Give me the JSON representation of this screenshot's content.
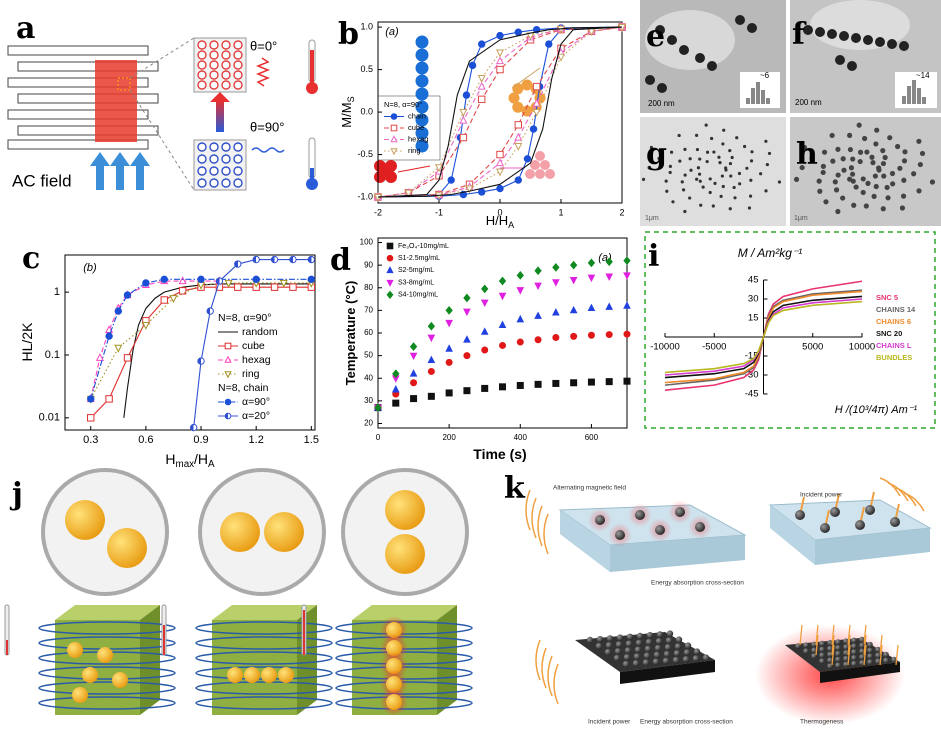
{
  "panel_labels": [
    "a",
    "b",
    "c",
    "d",
    "e",
    "f",
    "g",
    "h",
    "i",
    "j",
    "k"
  ],
  "panel_a": {
    "field_label": "AC field",
    "angle_parallel": "θ=0°",
    "angle_perpendicular": "θ=90°"
  },
  "micrographs": {
    "e_scale": "200 nm",
    "e_size": "~6",
    "f_scale": "200 nm",
    "f_size": "~14",
    "g_scale": "1μm",
    "h_scale": "1μm"
  },
  "panel_k": {
    "field": "Alternating magnetic field",
    "power_top": "Incident power",
    "cross_section_top": "Energy absorption cross-section",
    "power_bottom": "Incident power",
    "cross_section_bottom": "Energy absorption cross-section",
    "heat": "Thermogeness"
  },
  "chart_data": [
    {
      "type": "line",
      "annotation": "(a)",
      "xlabel": [
        "H/H",
        "A"
      ],
      "ylabel": [
        "M/M",
        "S"
      ],
      "xlim": [
        -2,
        2
      ],
      "ylim": [
        -1.07,
        1.06
      ],
      "xticks": [
        -2,
        -1,
        0,
        1,
        2
      ],
      "yticks": [
        {
          "value": -1,
          "label": "-1.0"
        },
        {
          "value": -0.5,
          "label": "-0.5"
        },
        {
          "value": 0,
          "label": "0.0"
        },
        {
          "value": 0.5,
          "label": "0.5"
        },
        {
          "value": 1,
          "label": "1.0"
        }
      ],
      "legend": "left",
      "series_groups": [
        {
          "title": "N=8, α=90°",
          "series": [
            {
              "name": "chain",
              "color": "#1a4fd6",
              "marker": "circle",
              "filled": true,
              "dash": "solid",
              "x": [
                2,
                1,
                0.6,
                0.3,
                0,
                -0.3,
                -0.45,
                -0.55,
                -0.65,
                -0.8,
                -1,
                -2,
                -1,
                -0.6,
                -0.3,
                0,
                0.3,
                0.45,
                0.55,
                0.65,
                0.8,
                1,
                2
              ],
              "values": [
                1,
                0.99,
                0.97,
                0.94,
                0.9,
                0.8,
                0.55,
                0.2,
                -0.3,
                -0.8,
                -0.97,
                -1,
                -0.99,
                -0.97,
                -0.94,
                -0.9,
                -0.8,
                -0.55,
                -0.2,
                0.3,
                0.8,
                0.97,
                1
              ]
            },
            {
              "name": "cube",
              "color": "#e04848",
              "marker": "square",
              "filled": false,
              "dash": "dashed",
              "x": [
                2,
                1,
                0.5,
                0,
                -0.3,
                -0.6,
                -1,
                -1.5,
                -2,
                -1,
                -0.5,
                0,
                0.3,
                0.6,
                1,
                1.5,
                2
              ],
              "values": [
                1,
                0.97,
                0.85,
                0.5,
                0.15,
                -0.3,
                -0.75,
                -0.95,
                -1,
                -0.97,
                -0.85,
                -0.5,
                -0.15,
                0.3,
                0.75,
                0.95,
                1
              ]
            },
            {
              "name": "hexag",
              "color": "#e868c8",
              "marker": "triangle",
              "filled": false,
              "dash": "dashed",
              "x": [
                2,
                1,
                0.5,
                0,
                -0.3,
                -0.6,
                -1,
                -1.5,
                -2,
                -1,
                -0.5,
                0,
                0.3,
                0.6,
                1,
                1.5,
                2
              ],
              "values": [
                1,
                0.98,
                0.88,
                0.6,
                0.3,
                -0.1,
                -0.7,
                -0.95,
                -1,
                -0.98,
                -0.88,
                -0.6,
                -0.3,
                0.1,
                0.7,
                0.95,
                1
              ]
            },
            {
              "name": "ring",
              "color": "#c8a060",
              "marker": "tri-down",
              "filled": false,
              "dash": "dotted",
              "x": [
                2,
                1,
                0.5,
                0,
                -0.3,
                -0.6,
                -1,
                -1.5,
                -2,
                -1,
                -0.5,
                0,
                0.3,
                0.6,
                1,
                1.5,
                2
              ],
              "values": [
                1,
                0.98,
                0.9,
                0.7,
                0.4,
                0,
                -0.65,
                -0.95,
                -1,
                -0.98,
                -0.9,
                -0.7,
                -0.4,
                0,
                0.65,
                0.95,
                1
              ]
            },
            {
              "color": "#111111",
              "dash": "solid",
              "x": [
                2,
                1.2,
                0.8,
                0.5,
                0,
                -0.5,
                -0.7,
                -0.85,
                -1,
                -1.2,
                -2,
                -1.2,
                -0.8,
                -0.5,
                0,
                0.5,
                0.7,
                0.85,
                1,
                1.2,
                2
              ],
              "values": [
                1,
                0.99,
                0.97,
                0.93,
                0.85,
                0.6,
                0.2,
                -0.4,
                -0.8,
                -0.97,
                -1,
                -0.99,
                -0.97,
                -0.93,
                -0.85,
                -0.6,
                -0.2,
                0.4,
                0.8,
                0.97,
                1
              ]
            }
          ]
        }
      ]
    },
    {
      "type": "line",
      "annotation": "(b)",
      "xlabel": [
        "H",
        "max",
        "/H",
        "A"
      ],
      "ylabel": [
        "HL/2K"
      ],
      "log_y": true,
      "xlim": [
        0.16,
        1.52
      ],
      "ylim": [
        0.0064,
        3.9
      ],
      "xticks": [
        0.3,
        0.6,
        0.9,
        1.2,
        1.5
      ],
      "yticks": [
        0.01,
        0.1,
        1
      ],
      "legend": "right",
      "series_groups": [
        {
          "title": "N=8, α=90°",
          "series": [
            {
              "name": "random",
              "color": "#111111",
              "dash": "solid",
              "x": [
                0.48,
                0.5,
                0.53,
                0.56,
                0.6,
                0.65,
                0.7,
                0.8,
                0.9,
                1.0,
                1.2,
                1.5
              ],
              "values": [
                0.01,
                0.03,
                0.12,
                0.3,
                0.55,
                0.8,
                1.0,
                1.2,
                1.3,
                1.35,
                1.35,
                1.35
              ]
            },
            {
              "name": "cube",
              "color": "#e03030",
              "marker": "square",
              "filled": false,
              "dash": "solid",
              "x": [
                0.3,
                0.4,
                0.5,
                0.6,
                0.7,
                0.8,
                0.9,
                1.0,
                1.1,
                1.2,
                1.3,
                1.4,
                1.5
              ],
              "values": [
                0.01,
                0.02,
                0.09,
                0.35,
                0.75,
                1.05,
                1.2,
                1.2,
                1.2,
                1.2,
                1.2,
                1.2,
                1.2
              ]
            },
            {
              "name": "hexag",
              "color": "#ff40c0",
              "marker": "triangle",
              "filled": false,
              "dash": "dashed",
              "x": [
                0.3,
                0.35,
                0.4,
                0.45,
                0.5,
                0.6,
                0.7,
                0.8,
                0.9,
                1.0
              ],
              "values": [
                0.02,
                0.09,
                0.25,
                0.55,
                0.9,
                1.3,
                1.5,
                1.5,
                1.5,
                1.5
              ]
            },
            {
              "name": "ring",
              "color": "#a09020",
              "marker": "tri-down",
              "filled": false,
              "dash": "dotted",
              "x": [
                0.3,
                0.45,
                0.6,
                0.75,
                0.9,
                1.05,
                1.2,
                1.35,
                1.5
              ],
              "values": [
                0.02,
                0.13,
                0.3,
                0.8,
                1.3,
                1.4,
                1.4,
                1.4,
                1.4
              ]
            }
          ]
        },
        {
          "title": "N=8, chain",
          "series": [
            {
              "name": "α=90°",
              "color": "#1a4fd6",
              "marker": "circle",
              "filled": true,
              "dash": "dashdot",
              "x": [
                0.3,
                0.4,
                0.45,
                0.5,
                0.6,
                0.7,
                0.9,
                1.2,
                1.5
              ],
              "values": [
                0.02,
                0.2,
                0.5,
                0.9,
                1.4,
                1.6,
                1.6,
                1.6,
                1.6
              ]
            },
            {
              "name": "α=20°",
              "color": "#3050d0",
              "marker": "half",
              "filled": true,
              "dash": "solid",
              "x": [
                0.86,
                0.9,
                0.95,
                1.0,
                1.1,
                1.2,
                1.3,
                1.4,
                1.5
              ],
              "values": [
                0.007,
                0.08,
                0.5,
                1.5,
                2.8,
                3.3,
                3.3,
                3.3,
                3.3
              ]
            }
          ]
        }
      ]
    },
    {
      "type": "scatter",
      "annotation": "(a)",
      "xlabel": [
        "Time (s)"
      ],
      "ylabel": [
        "Temperature (°C)"
      ],
      "lines": false,
      "xlim": [
        0,
        700
      ],
      "ylim": [
        18,
        102
      ],
      "xticks": [
        0,
        200,
        400,
        600
      ],
      "yticks": [
        20,
        30,
        40,
        50,
        60,
        70,
        80,
        90,
        100
      ],
      "legend": "upper left",
      "x": [
        0,
        50,
        100,
        150,
        200,
        250,
        300,
        350,
        400,
        450,
        500,
        550,
        600,
        650,
        700
      ],
      "series": [
        {
          "name": "Fe₃O₄-10mg/mL",
          "color": "#111111",
          "marker": "square",
          "filled": true,
          "values": [
            27,
            29,
            31,
            32,
            33.5,
            34.5,
            35.5,
            36.2,
            36.8,
            37.3,
            37.7,
            38,
            38.3,
            38.5,
            38.7
          ]
        },
        {
          "name": "S1-2.5mg/mL",
          "color": "#e01818",
          "marker": "circle",
          "filled": true,
          "values": [
            27,
            33,
            38,
            43,
            47,
            50,
            52.5,
            54.5,
            56,
            57,
            58,
            58.5,
            59,
            59.3,
            59.5
          ]
        },
        {
          "name": "S2-5mg/mL",
          "color": "#2040e0",
          "marker": "triangle",
          "filled": true,
          "values": [
            27,
            35,
            42,
            48,
            53,
            57,
            60.5,
            63.5,
            66,
            67.5,
            69,
            70,
            71,
            71.5,
            72
          ]
        },
        {
          "name": "S3-8mg/mL",
          "color": "#e020e0",
          "marker": "tri-down",
          "filled": true,
          "values": [
            27,
            40,
            50,
            58,
            64.5,
            69.5,
            73.5,
            76.5,
            79,
            81,
            82.5,
            83.5,
            84.5,
            85,
            85.5
          ]
        },
        {
          "name": "S4-10mg/mL",
          "color": "#108a20",
          "marker": "diamond",
          "filled": true,
          "values": [
            27,
            42,
            54,
            63,
            70,
            75.5,
            79.5,
            83,
            85.5,
            87.5,
            89,
            90,
            91,
            91.5,
            92
          ]
        }
      ]
    },
    {
      "type": "line",
      "xlabel": [
        "H /(10³/4π) Am⁻¹"
      ],
      "ylabel": [
        "M / Am²kg⁻¹"
      ],
      "axes_cross_zero": true,
      "legend_style": "text",
      "xlim": [
        -10000,
        10000
      ],
      "ylim": [
        -45,
        45
      ],
      "xticks": [
        -10000,
        -5000,
        5000,
        10000
      ],
      "yticks": [
        -45,
        -30,
        -15,
        15,
        30,
        45
      ],
      "legend": "right",
      "x": [
        -10000,
        -5000,
        -2000,
        -1000,
        -500,
        0,
        500,
        1000,
        2000,
        5000,
        10000
      ],
      "series": [
        {
          "name": "SNC 5",
          "color": "#e8336d",
          "dash": "solid",
          "values": [
            -42,
            -38,
            -32,
            -26,
            -18,
            0,
            18,
            26,
            32,
            38,
            44
          ]
        },
        {
          "name": "CHAINS 14",
          "color": "#666666",
          "dash": "solid",
          "values": [
            -38,
            -34,
            -29,
            -24,
            -16,
            0,
            16,
            24,
            29,
            34,
            37
          ]
        },
        {
          "name": "CHAINS 6",
          "color": "#f08a2a",
          "dash": "solid",
          "values": [
            -36,
            -33,
            -28,
            -23,
            -15,
            0,
            15,
            23,
            28,
            33,
            36
          ]
        },
        {
          "name": "SNC 20",
          "color": "#111111",
          "dash": "solid",
          "values": [
            -32,
            -29,
            -25,
            -20,
            -13,
            0,
            13,
            20,
            25,
            29,
            32
          ]
        },
        {
          "name": "CHAINS L",
          "color": "#d63ad0",
          "dash": "solid",
          "values": [
            -30,
            -27,
            -23,
            -18,
            -12,
            0,
            12,
            18,
            23,
            27,
            30
          ]
        },
        {
          "name": "BUNDLES",
          "color": "#b8b820",
          "dash": "solid",
          "values": [
            -28,
            -25,
            -21,
            -17,
            -11,
            0,
            11,
            17,
            21,
            25,
            28
          ]
        }
      ]
    }
  ]
}
